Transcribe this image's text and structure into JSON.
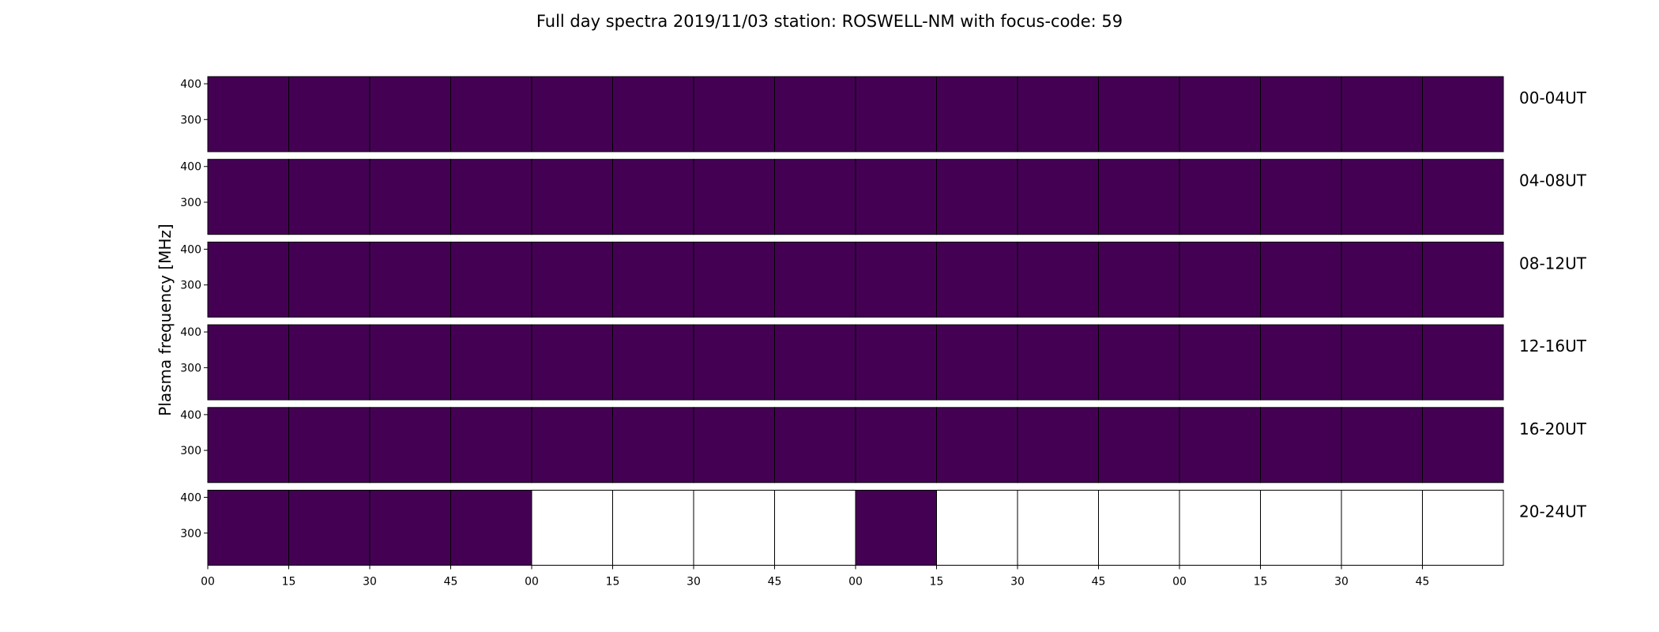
{
  "chart_data": {
    "type": "heatmap",
    "title": "Full day spectra 2019/11/03 station: ROSWELL-NM with focus-code: 59",
    "ylabel": "Plasma frequency [MHz]",
    "xlabel": "",
    "colormap": "viridis",
    "panel_color": "#440154",
    "ylim": [
      210,
      420
    ],
    "y_ticks": [
      300,
      400
    ],
    "y_tick_labels": [
      "300",
      "400"
    ],
    "x_tick_labels": [
      "00",
      "15",
      "30",
      "45",
      "00",
      "15",
      "30",
      "45",
      "00",
      "15",
      "30",
      "45",
      "00",
      "15",
      "30",
      "45"
    ],
    "minutes_per_panel": 15,
    "panels_per_row": 16,
    "rows": [
      {
        "label": "00-04UT",
        "present": [
          1,
          1,
          1,
          1,
          1,
          1,
          1,
          1,
          1,
          1,
          1,
          1,
          1,
          1,
          1,
          1
        ]
      },
      {
        "label": "04-08UT",
        "present": [
          1,
          1,
          1,
          1,
          1,
          1,
          1,
          1,
          1,
          1,
          1,
          1,
          1,
          1,
          1,
          1
        ]
      },
      {
        "label": "08-12UT",
        "present": [
          1,
          1,
          1,
          1,
          1,
          1,
          1,
          1,
          1,
          1,
          1,
          1,
          1,
          1,
          1,
          1
        ]
      },
      {
        "label": "12-16UT",
        "present": [
          1,
          1,
          1,
          1,
          1,
          1,
          1,
          1,
          1,
          1,
          1,
          1,
          1,
          1,
          1,
          1
        ]
      },
      {
        "label": "16-20UT",
        "present": [
          1,
          1,
          1,
          1,
          1,
          1,
          1,
          1,
          1,
          1,
          1,
          1,
          1,
          1,
          1,
          1
        ]
      },
      {
        "label": "20-24UT",
        "present": [
          1,
          1,
          1,
          1,
          0,
          0,
          0,
          0,
          1,
          0,
          0,
          0,
          0,
          0,
          0,
          0
        ]
      }
    ],
    "grid": false,
    "legend": "none"
  }
}
